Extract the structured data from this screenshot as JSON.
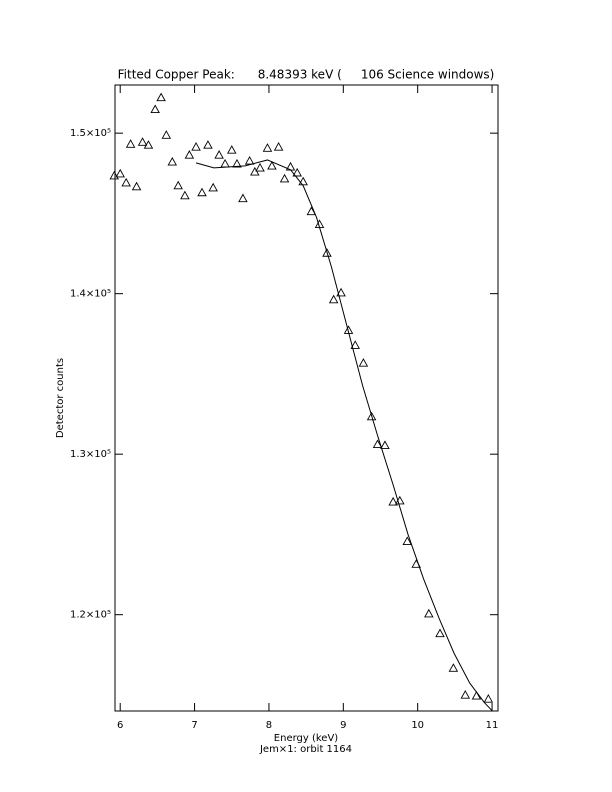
{
  "chart_data": {
    "type": "scatter",
    "title": "Fitted Copper Peak:      8.48393 keV (     106 Science windows)",
    "x_label": "Energy (keV)",
    "subtitle": "Jem×1: orbit 1164",
    "y_label": "Detector counts",
    "xlim": [
      5.93,
      11.08
    ],
    "ylim": [
      114000,
      153000
    ],
    "xticks": [
      6,
      7,
      8,
      9,
      10,
      11
    ],
    "yticks": [
      {
        "value": 120000,
        "label": "1.2×10⁵"
      },
      {
        "value": 130000,
        "label": "1.3×10⁵"
      },
      {
        "value": 140000,
        "label": "1.4×10⁵"
      },
      {
        "value": 150000,
        "label": "1.5×10⁵"
      }
    ],
    "grid": false,
    "series": [
      {
        "marker": "triangle",
        "color": "#000000",
        "x": [
          5.92,
          6.0,
          6.08,
          6.14,
          6.22,
          6.3,
          6.38,
          6.47,
          6.55,
          6.62,
          6.7,
          6.78,
          6.87,
          6.93,
          7.02,
          7.1,
          7.18,
          7.25,
          7.33,
          7.41,
          7.5,
          7.57,
          7.65,
          7.74,
          7.81,
          7.88,
          7.98,
          8.04,
          8.13,
          8.21,
          8.29,
          8.38,
          8.46,
          8.57,
          8.68,
          8.78,
          8.87,
          8.97,
          9.07,
          9.16,
          9.27,
          9.38,
          9.46,
          9.56,
          9.67,
          9.76,
          9.86,
          9.98,
          10.15,
          10.3,
          10.48,
          10.64,
          10.79,
          10.95
        ],
        "values": [
          147350,
          147470,
          146910,
          149320,
          146670,
          149440,
          149260,
          151480,
          152220,
          149880,
          148210,
          146730,
          146110,
          148640,
          149140,
          146300,
          149260,
          146600,
          148640,
          148090,
          148950,
          148090,
          145930,
          148270,
          147590,
          147840,
          149070,
          147960,
          149140,
          147160,
          147900,
          147530,
          146980,
          145120,
          144320,
          142530,
          139630,
          140060,
          137720,
          136790,
          135680,
          132340,
          130610,
          130550,
          127030,
          127100,
          124570,
          123150,
          120060,
          118830,
          116670,
          115000,
          114940,
          114750
        ]
      },
      {
        "marker": "line",
        "color": "#000000",
        "x": [
          7.02,
          7.26,
          7.68,
          7.98,
          8.29,
          8.46,
          8.64,
          8.84,
          9.05,
          9.26,
          9.46,
          9.67,
          9.87,
          10.08,
          10.29,
          10.49,
          10.7,
          10.9,
          11.0
        ],
        "values": [
          148150,
          147840,
          147960,
          148330,
          147720,
          146730,
          144750,
          141670,
          137960,
          134260,
          131170,
          128090,
          125000,
          122220,
          119750,
          117590,
          115740,
          114510,
          114020
        ]
      }
    ]
  }
}
